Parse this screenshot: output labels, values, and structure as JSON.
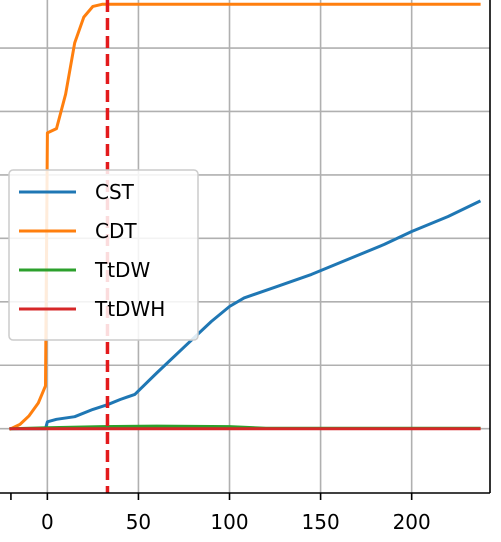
{
  "chart_data": {
    "type": "line",
    "xlim": [
      -26,
      243
    ],
    "ylim": [
      -0.15,
      1.0
    ],
    "x_ticks": [
      0,
      50,
      100,
      150,
      200
    ],
    "x_tick_labels": [
      "0",
      "50",
      "100",
      "150",
      "200"
    ],
    "y_gridlines": [
      0.0,
      0.148,
      0.296,
      0.444,
      0.592,
      0.74,
      0.888
    ],
    "grid": true,
    "legend_position": "center-left",
    "vertical_marker": {
      "x": 33,
      "color": "#e31a1c",
      "style": "dashed"
    },
    "series": [
      {
        "name": "CST",
        "color": "#1f77b4",
        "points": [
          [
            -20,
            0.0
          ],
          [
            -1,
            0.0
          ],
          [
            0,
            0.016
          ],
          [
            5,
            0.022
          ],
          [
            15,
            0.028
          ],
          [
            25,
            0.045
          ],
          [
            33,
            0.056
          ],
          [
            40,
            0.068
          ],
          [
            48,
            0.08
          ],
          [
            60,
            0.13
          ],
          [
            75,
            0.19
          ],
          [
            90,
            0.25
          ],
          [
            100,
            0.285
          ],
          [
            108,
            0.305
          ],
          [
            125,
            0.33
          ],
          [
            145,
            0.36
          ],
          [
            165,
            0.395
          ],
          [
            185,
            0.43
          ],
          [
            200,
            0.46
          ],
          [
            220,
            0.495
          ],
          [
            237,
            0.53
          ]
        ]
      },
      {
        "name": "CDT",
        "color": "#ff7f0e",
        "points": [
          [
            -20,
            0.0
          ],
          [
            -15,
            0.01
          ],
          [
            -10,
            0.03
          ],
          [
            -5,
            0.06
          ],
          [
            -1,
            0.1
          ],
          [
            0,
            0.69
          ],
          [
            5,
            0.7
          ],
          [
            10,
            0.78
          ],
          [
            15,
            0.9
          ],
          [
            20,
            0.96
          ],
          [
            25,
            0.985
          ],
          [
            30,
            0.99
          ],
          [
            237,
            0.99
          ]
        ]
      },
      {
        "name": "TtDW",
        "color": "#2ca02c",
        "points": [
          [
            -20,
            0.0
          ],
          [
            0,
            0.002
          ],
          [
            30,
            0.005
          ],
          [
            60,
            0.006
          ],
          [
            100,
            0.005
          ],
          [
            120,
            0.001
          ],
          [
            237,
            0.001
          ]
        ]
      },
      {
        "name": "TtDWH",
        "color": "#d62728",
        "points": [
          [
            -20,
            0.0
          ],
          [
            237,
            0.0
          ]
        ]
      }
    ]
  }
}
